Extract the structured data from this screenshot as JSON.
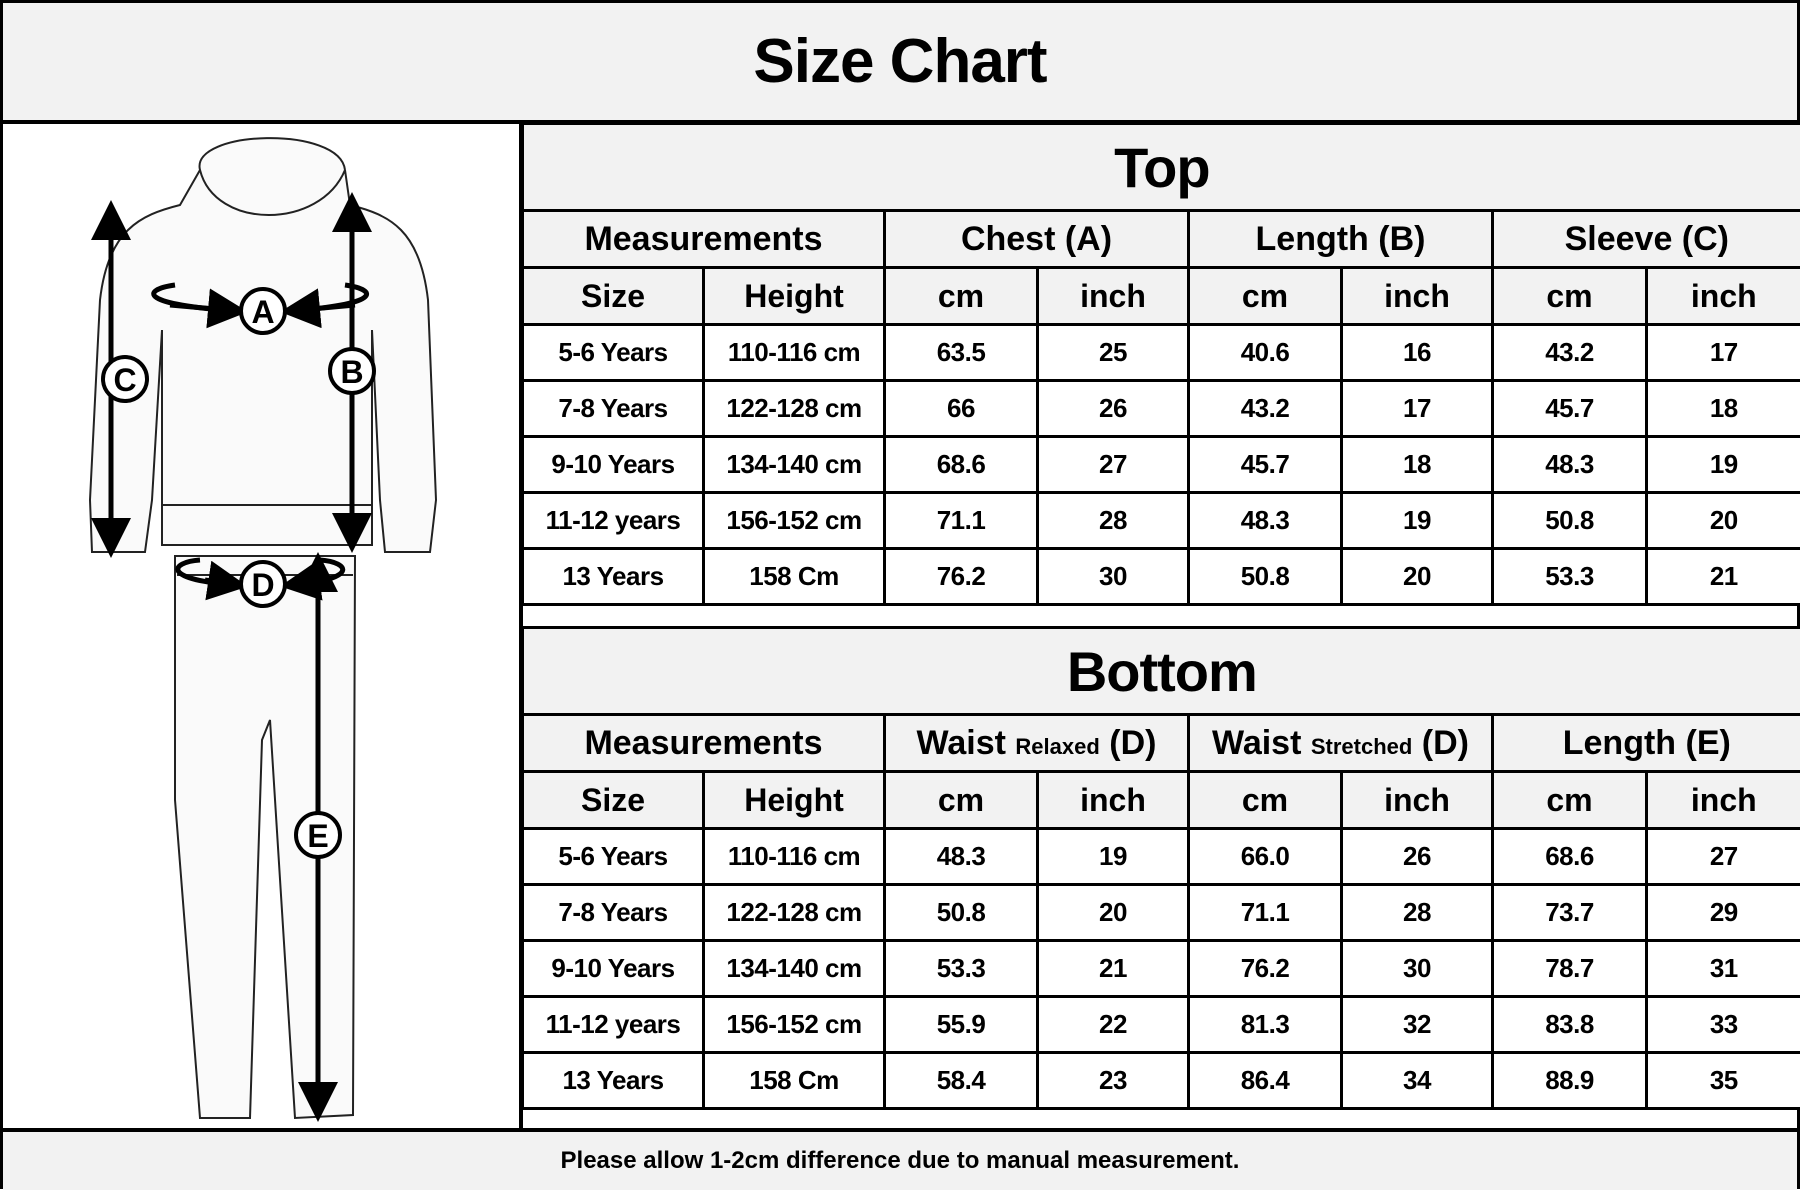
{
  "title": "Size Chart",
  "diagram": {
    "labels": [
      "A",
      "B",
      "C",
      "D",
      "E"
    ]
  },
  "top": {
    "title": "Top",
    "groups": [
      {
        "label": "Measurements",
        "small": ""
      },
      {
        "label": "Chest (A)",
        "small": ""
      },
      {
        "label": "Length (B)",
        "small": ""
      },
      {
        "label": "Sleeve (C)",
        "small": ""
      }
    ],
    "subheaders": [
      "Size",
      "Height",
      "cm",
      "inch",
      "cm",
      "inch",
      "cm",
      "inch"
    ],
    "rows": [
      [
        "5-6 Years",
        "110-116 cm",
        "63.5",
        "25",
        "40.6",
        "16",
        "43.2",
        "17"
      ],
      [
        "7-8 Years",
        "122-128 cm",
        "66",
        "26",
        "43.2",
        "17",
        "45.7",
        "18"
      ],
      [
        "9-10 Years",
        "134-140 cm",
        "68.6",
        "27",
        "45.7",
        "18",
        "48.3",
        "19"
      ],
      [
        "11-12 years",
        "156-152 cm",
        "71.1",
        "28",
        "48.3",
        "19",
        "50.8",
        "20"
      ],
      [
        "13 Years",
        "158 Cm",
        "76.2",
        "30",
        "50.8",
        "20",
        "53.3",
        "21"
      ]
    ]
  },
  "bottom": {
    "title": "Bottom",
    "groups": [
      {
        "label": "Measurements",
        "small": ""
      },
      {
        "label": "Waist",
        "small": "Relaxed",
        "suffix": "(D)"
      },
      {
        "label": "Waist",
        "small": "Stretched",
        "suffix": "(D)"
      },
      {
        "label": "Length (E)",
        "small": ""
      }
    ],
    "subheaders": [
      "Size",
      "Height",
      "cm",
      "inch",
      "cm",
      "inch",
      "cm",
      "inch"
    ],
    "rows": [
      [
        "5-6 Years",
        "110-116 cm",
        "48.3",
        "19",
        "66.0",
        "26",
        "68.6",
        "27"
      ],
      [
        "7-8 Years",
        "122-128 cm",
        "50.8",
        "20",
        "71.1",
        "28",
        "73.7",
        "29"
      ],
      [
        "9-10 Years",
        "134-140 cm",
        "53.3",
        "21",
        "76.2",
        "30",
        "78.7",
        "31"
      ],
      [
        "11-12 years",
        "156-152 cm",
        "55.9",
        "22",
        "81.3",
        "32",
        "83.8",
        "33"
      ],
      [
        "13 Years",
        "158 Cm",
        "58.4",
        "23",
        "86.4",
        "34",
        "88.9",
        "35"
      ]
    ]
  },
  "footer": "Please allow 1-2cm difference due to manual measurement."
}
